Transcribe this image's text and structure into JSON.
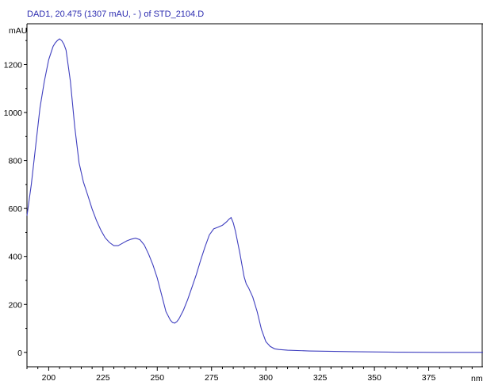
{
  "colors": {
    "trace": "#3f3fbf",
    "title": "#2b2bb0",
    "axis": "#000000",
    "background": "#ffffff"
  },
  "chart_data": {
    "type": "line",
    "title": "DAD1, 20.475 (1307 mAU, - ) of STD_2104.D",
    "ylabel": "mAU",
    "xlabel": "nm",
    "xlim": [
      190,
      400
    ],
    "ylim": [
      -60,
      1370
    ],
    "xticks": [
      200,
      225,
      250,
      275,
      300,
      325,
      350,
      375
    ],
    "yticks": [
      0,
      200,
      400,
      600,
      800,
      1000,
      1200
    ],
    "xtick_labels": [
      "200",
      "225",
      "250",
      "275",
      "300",
      "325",
      "350",
      "375"
    ],
    "ytick_labels": [
      "0",
      "200",
      "400",
      "600",
      "800",
      "1000",
      "1200"
    ],
    "grid": false,
    "legend": "none",
    "series": [
      {
        "x": [
          190,
          192,
          194,
          196,
          198,
          200,
          202,
          203,
          204,
          205,
          206,
          207,
          208,
          210,
          212,
          214,
          216,
          218,
          220,
          222,
          224,
          226,
          228,
          230,
          232,
          234,
          236,
          238,
          240,
          242,
          244,
          246,
          248,
          250,
          252,
          254,
          256,
          257,
          258,
          259,
          260,
          262,
          264,
          266,
          268,
          270,
          272,
          274,
          276,
          278,
          280,
          282,
          283,
          284,
          285,
          286,
          287,
          288,
          289,
          290,
          291,
          292,
          294,
          296,
          298,
          300,
          302,
          304,
          306,
          310,
          320,
          340,
          360,
          380,
          400
        ],
        "y": [
          570,
          700,
          860,
          1020,
          1130,
          1220,
          1275,
          1290,
          1300,
          1307,
          1300,
          1285,
          1260,
          1130,
          940,
          790,
          710,
          655,
          598,
          550,
          510,
          478,
          458,
          445,
          445,
          455,
          465,
          472,
          476,
          470,
          448,
          410,
          365,
          310,
          240,
          170,
          135,
          125,
          122,
          128,
          140,
          175,
          220,
          272,
          325,
          385,
          440,
          490,
          515,
          522,
          530,
          545,
          555,
          562,
          540,
          505,
          460,
          415,
          365,
          315,
          285,
          270,
          230,
          170,
          95,
          45,
          25,
          15,
          12,
          9,
          6,
          3,
          1,
          0,
          0
        ]
      }
    ]
  }
}
